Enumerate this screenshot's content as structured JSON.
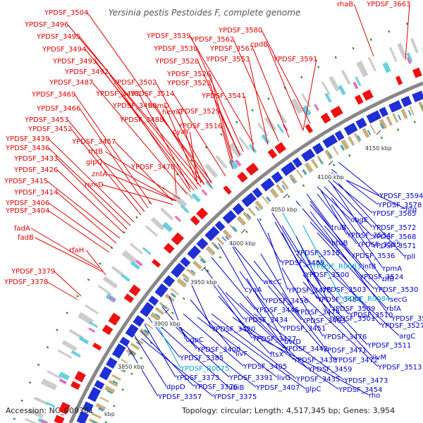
{
  "header": {
    "title": "Yersinia pestis Pestoides F, complete genome"
  },
  "footer": {
    "accession": "Accession: NC_009381",
    "unit": "kbp",
    "summary": "Topology: circular; Length: 4,517,345 bp; Genes: 3,954"
  },
  "scale_labels": [
    "4150 kbp",
    "4100 kbp",
    "4050 kbp",
    "4000 kbp",
    "3950 kbp",
    "3900 kbp",
    "3850 kbp"
  ],
  "colors": {
    "forward_strand": "#e00000",
    "reverse_strand": "#0000cc",
    "rna_gene": "#00aacc",
    "backbone": "#888888"
  },
  "outer_labels": [
    "YPDSF_3504",
    "YPDSF_3496",
    "YPDSF_3495",
    "YPDSF_3494",
    "YPDSF_3493",
    "YPDSF_3492",
    "YPDSF_3487",
    "YPDSF_3502",
    "YPDSF_3491",
    "YPDSF_3514",
    "YPDSF_3469",
    "YPDSF_3490",
    "YPDSF_3466",
    "hemD",
    "YPDSF_3488",
    "YPDSF_3453",
    "hemC",
    "YPDSF_3516",
    "YPDSF_3452",
    "cyaY",
    "YPDSF_3439",
    "YPDSF_3457",
    "YPDSF_3436",
    "rhtB",
    "glpQ",
    "YPDSF_3433",
    "YPDSF_3470",
    "YPDSF_3426",
    "zntA",
    "YPDSF_3415",
    "rsmD",
    "YPDSF_3414",
    "YPDSF_3406",
    "YPDSF_3404",
    "fadA",
    "fadB",
    "rfaH",
    "YPDSF_3379",
    "YPDSF_3378",
    "YPDSF_3539",
    "YPDSF_3580",
    "YPDSF_3562",
    "YPDSF_3538",
    "YPDSF_3567",
    "cpdB",
    "YPDSF_3528",
    "YPDSF_3553",
    "YPDSF_3591",
    "YPDSF_3526",
    "YPDSF_3523",
    "YPDSF_3541",
    "YPDSF_3529",
    "rhaB",
    "YPDSF_3663"
  ],
  "inner_labels": [
    "YPDSF_3594",
    "YPDSF_3578",
    "hfq",
    "YPDSF_3565",
    "obgE",
    "YPDSF_3572",
    "truB",
    "YPDSF_3534",
    "YPDSF_3568",
    "btuB",
    "YPDSF_3535",
    "YPDSF_3571",
    "rplI",
    "YPDSF_3515",
    "YPDSF_3536",
    "YPDSF_3489",
    "YPDSF_R0083",
    "infB",
    "rpmA",
    "YPDSF_3500",
    "YPDSF_3524",
    "rlfB",
    "wecC",
    "YPDSF_3503",
    "YPDSF_3530",
    "cyaA",
    "YPDSF_3475",
    "YPDSF_3484",
    "YPDSF_R0084",
    "secG",
    "YPDSF_3456",
    "YPDSF_3509",
    "rbfA",
    "YPDSF_3445",
    "YPDSF_3474",
    "YPDSF_3501",
    "YPDSF_3532",
    "YPDSF_3434",
    "YPDSF_3463",
    "YPDSF_3510",
    "YPDSF_3527",
    "YPDSF_3420",
    "YPDSF_3451",
    "YPDSF_3476",
    "argC",
    "ugpC",
    "YPDSF_3427",
    "uvrD",
    "YPDSF_3511",
    "YPDSF_3400",
    "YPDSF_3442",
    "YPDSF_3471",
    "ilvM",
    "livF",
    "ftsX",
    "YPDSF_3438",
    "YPDSF_3472",
    "YPDSF_3385",
    "YPDSF_R0075",
    "YPDSF_3405",
    "YPDSF_3459",
    "YPDSF_3513",
    "YPDSF_3373",
    "YPDSF_3391",
    "livG",
    "YPDSF_3435",
    "YPDSF_3473",
    "dppD",
    "YPDSF_3376",
    "ubiB",
    "YPDSF_3407",
    "glpC",
    "YPDSF_3454",
    "YPDSF_3357",
    "YPDSF_3375",
    "rho"
  ]
}
